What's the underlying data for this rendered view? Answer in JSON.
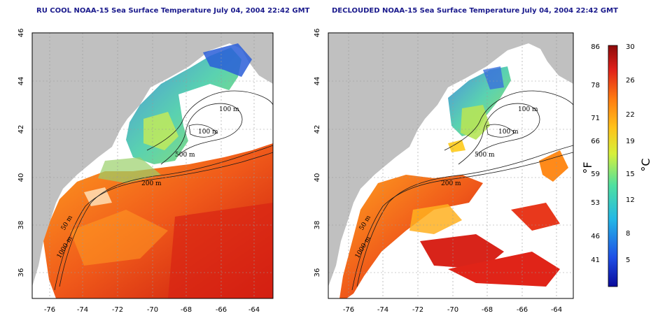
{
  "titles": {
    "left": "RU COOL NOAA-15 Sea Surface Temperature July 04, 2004 22:42 GMT",
    "right": "DECLOUDED NOAA-15 Sea Surface Temperature July 04, 2004 22:42 GMT"
  },
  "axes": {
    "lon_ticks": [
      "-76",
      "-74",
      "-72",
      "-70",
      "-68",
      "-66",
      "-64"
    ],
    "lat_ticks": [
      "46",
      "44",
      "42",
      "40",
      "38",
      "36"
    ]
  },
  "contour_labels": [
    "100 m",
    "100 m",
    "500 m",
    "200 m",
    "50 m",
    "1000 m"
  ],
  "colorbar": {
    "fahrenheit_ticks": [
      "86",
      "78",
      "71",
      "66",
      "59",
      "53",
      "46",
      "41"
    ],
    "celsius_ticks": [
      "30",
      "26",
      "22",
      "19",
      "15",
      "12",
      "8",
      "5"
    ],
    "unit_f": "°F",
    "unit_c": "°C"
  },
  "colors": {
    "land": "#c0c0c0",
    "title": "#1a1a8c",
    "warm": "#e8321e",
    "cool": "#2a7de0"
  }
}
